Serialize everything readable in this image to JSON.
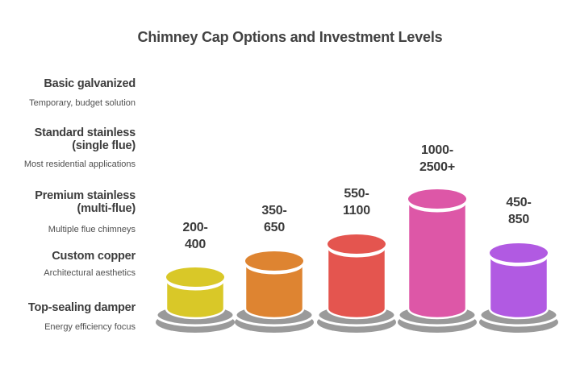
{
  "title": "Chimney Cap Options and Investment Levels",
  "colors": {
    "background": "#ffffff",
    "pedestal_gray": "#9a9a9a",
    "title_text": "#424242",
    "category_text": "#3d3d3d",
    "sublabel_text": "#4f4f4f",
    "value_text": "#3a3a3a"
  },
  "items": [
    {
      "label_lines": [
        "Basic galvanized"
      ],
      "sublabel": "Temporary, budget solution",
      "range_lines": [
        "200-",
        "400"
      ],
      "range": "200-400",
      "color": "#d9c828"
    },
    {
      "label_lines": [
        "Standard stainless",
        "(single flue)"
      ],
      "sublabel": "Most residential applications",
      "range_lines": [
        "350-",
        "650"
      ],
      "range": "350-650",
      "color": "#de8431"
    },
    {
      "label_lines": [
        "Premium stainless",
        "(multi-flue)"
      ],
      "sublabel": "Multiple flue chimneys",
      "range_lines": [
        "550-",
        "1100"
      ],
      "range": "550-1100",
      "color": "#e4554f"
    },
    {
      "label_lines": [
        "Custom copper"
      ],
      "sublabel": "Architectural aesthetics",
      "range_lines": [
        "1000-",
        "2500+"
      ],
      "range": "1000-2500+",
      "color": "#dd57a7"
    },
    {
      "label_lines": [
        "Top-sealing damper"
      ],
      "sublabel": "Energy efficiency focus",
      "range_lines": [
        "450-",
        "850"
      ],
      "range": "450-850",
      "color": "#b15ae2"
    }
  ],
  "chart_data": {
    "type": "bar",
    "style": "3d-cylinder-pictograph",
    "title": "Chimney Cap Options and Investment Levels",
    "unit": "investment range",
    "categories": [
      "Basic galvanized",
      "Standard stainless (single flue)",
      "Premium stainless (multi-flue)",
      "Custom copper",
      "Top-sealing damper"
    ],
    "category_descriptions": [
      "Temporary, budget solution",
      "Most residential applications",
      "Multiple flue chimneys",
      "Architectural aesthetics",
      "Energy efficiency focus"
    ],
    "range_labels": [
      "200-400",
      "350-650",
      "550-1100",
      "1000-2500+",
      "450-850"
    ],
    "values_min": [
      200,
      350,
      550,
      1000,
      450
    ],
    "values_max": [
      400,
      650,
      1100,
      2500,
      850
    ],
    "series_colors": [
      "#d9c828",
      "#de8431",
      "#e4554f",
      "#dd57a7",
      "#b15ae2"
    ],
    "legend": "none",
    "grid": "off",
    "axes": "none"
  }
}
